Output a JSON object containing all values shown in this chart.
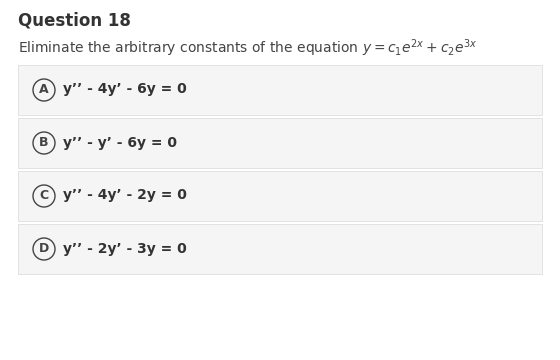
{
  "title": "Question 18",
  "bg_color": "#ffffff",
  "option_bg": "#f5f5f5",
  "option_border": "#d8d8d8",
  "title_color": "#333333",
  "text_color": "#444444",
  "circle_color": "#444444",
  "title_fontsize": 12,
  "question_fontsize": 10,
  "option_fontsize": 10,
  "label_fontsize": 9,
  "options": [
    {
      "label": "A",
      "text": "y’’ - 4y’ - 6y = 0"
    },
    {
      "label": "B",
      "text": "y’’ - y’ - 6y = 0"
    },
    {
      "label": "C",
      "text": "y’’ - 4y’ - 2y = 0"
    },
    {
      "label": "D",
      "text": "y’’ - 2y’ - 3y = 0"
    }
  ]
}
